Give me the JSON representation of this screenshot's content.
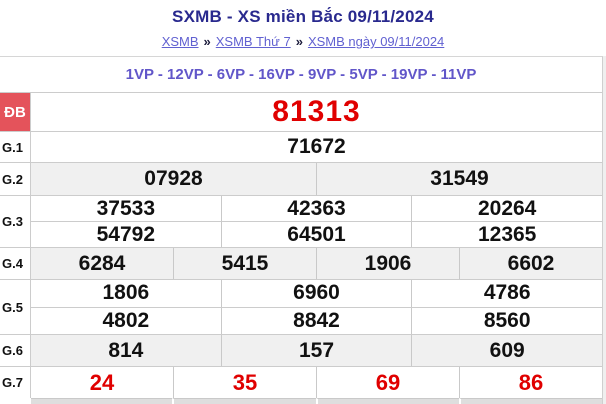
{
  "page": {
    "title": "SXMB - XS miền Bắc 09/11/2024",
    "breadcrumb": {
      "separator": "»",
      "items": [
        {
          "label": "XSMB"
        },
        {
          "label": "XSMB Thứ 7"
        },
        {
          "label": "XSMB ngày 09/11/2024"
        }
      ]
    },
    "station_line": "1VP - 12VP - 6VP - 16VP - 9VP - 5VP - 19VP - 11VP"
  },
  "results": {
    "rows": [
      {
        "label": "ĐB",
        "values": [
          "81313"
        ]
      },
      {
        "label": "G.1",
        "values": [
          "71672"
        ]
      },
      {
        "label": "G.2",
        "values": [
          "07928",
          "31549"
        ]
      },
      {
        "label": "G.3",
        "lines": [
          [
            "37533",
            "42363",
            "20264"
          ],
          [
            "54792",
            "64501",
            "12365"
          ]
        ]
      },
      {
        "label": "G.4",
        "values": [
          "6284",
          "5415",
          "1906",
          "6602"
        ]
      },
      {
        "label": "G.5",
        "lines": [
          [
            "1806",
            "6960",
            "4786"
          ],
          [
            "4802",
            "8842",
            "8560"
          ]
        ]
      },
      {
        "label": "G.6",
        "values": [
          "814",
          "157",
          "609"
        ]
      },
      {
        "label": "G.7",
        "values": [
          "24",
          "35",
          "69",
          "86"
        ]
      }
    ]
  },
  "colors": {
    "title_navy": "#29298e",
    "link_purple": "#6161d1",
    "station_purple": "#6156c9",
    "value_red": "#e00000",
    "db_label_bg": "#e4535b",
    "gray_row_bg": "#f0f0f0",
    "border": "#cccccc"
  }
}
